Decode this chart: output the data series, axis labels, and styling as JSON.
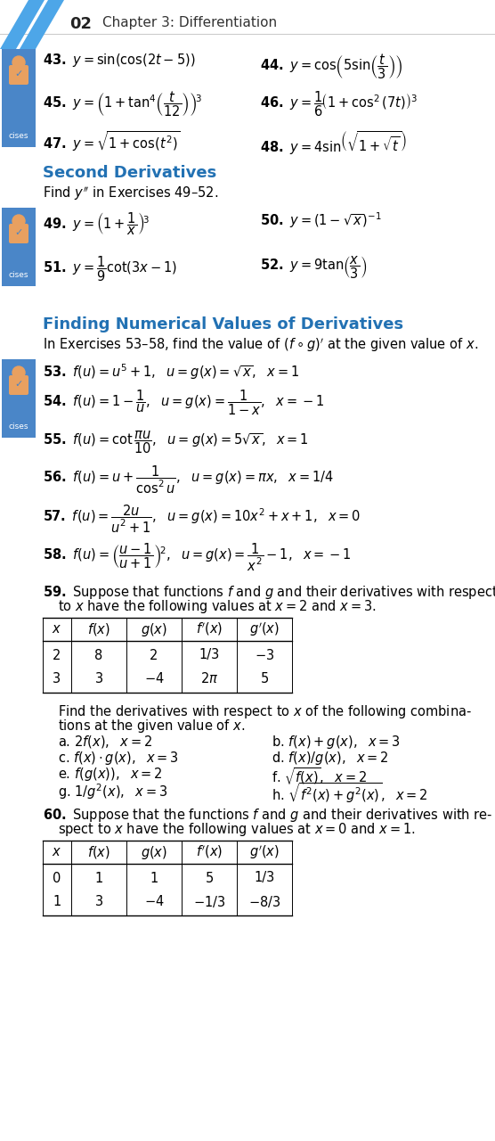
{
  "bg_color": "#ffffff",
  "header_number": "02",
  "header_title": "Chapter 3: Differentiation",
  "section2_title": "Second Derivatives",
  "section3_title": "Finding Numerical Values of Derivatives",
  "table59_headers": [
    "$x$",
    "$f(x)$",
    "$g(x)$",
    "$f'(x)$",
    "$g'(x)$"
  ],
  "table59_rows": [
    [
      "2",
      "8",
      "2",
      "1/3",
      "$-3$"
    ],
    [
      "3",
      "3",
      "$-4$",
      "$2\\pi$",
      "5"
    ]
  ],
  "table60_headers": [
    "$x$",
    "$f(x)$",
    "$g(x)$",
    "$f'(x)$",
    "$g'(x)$"
  ],
  "table60_rows": [
    [
      "0",
      "1",
      "1",
      "5",
      "1/3"
    ],
    [
      "1",
      "3",
      "$-4$",
      "$-1/3$",
      "$-8/3$"
    ]
  ],
  "problem59_parts": [
    [
      "a. $2f(x),\\ \\ x = 2$",
      "b. $f(x) + g(x),\\ \\ x = 3$"
    ],
    [
      "c. $f(x)\\cdot g(x),\\ \\ x = 3$",
      "d. $f(x)/g(x),\\ \\ x = 2$"
    ],
    [
      "e. $f(g(x)),\\ \\ x = 2$",
      "f. $\\sqrt{f(x)},\\ \\ x = 2$"
    ],
    [
      "g. $1/g^2(x),\\ \\ x = 3$",
      "h. $\\sqrt{f^2(x) + g^2(x)},\\ \\ x = 2$"
    ]
  ],
  "section_color": "#2271b3",
  "sidebar_colors": [
    "#5b9bd5",
    "#ed7d31"
  ],
  "sidebar_bg": "#4a86c8"
}
